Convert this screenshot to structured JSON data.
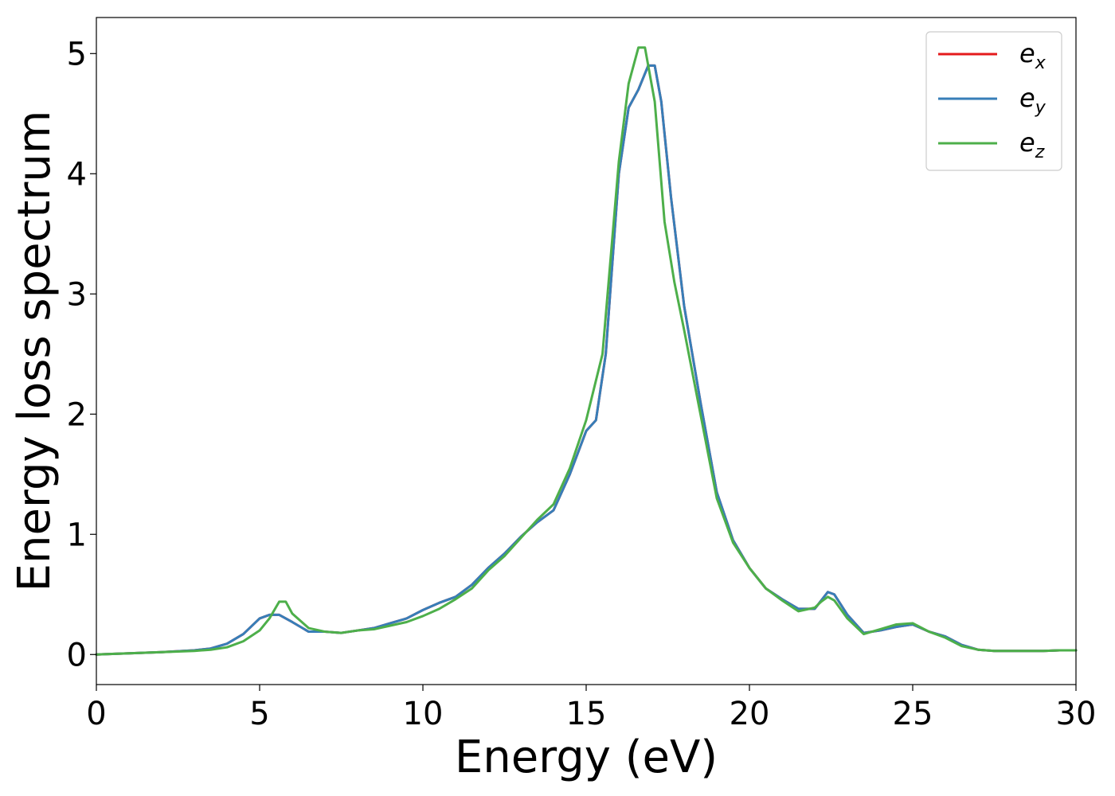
{
  "chart_data": {
    "type": "line",
    "title": "",
    "xlabel": "Energy (eV)",
    "ylabel": "Energy loss spectrum",
    "xlim": [
      0,
      30
    ],
    "ylim": [
      -0.25,
      5.3
    ],
    "xticks": [
      0,
      5,
      10,
      15,
      20,
      25,
      30
    ],
    "yticks": [
      0,
      1,
      2,
      3,
      4,
      5
    ],
    "grid": false,
    "legend_position": "top-right",
    "series": [
      {
        "name": "e_x",
        "legend_base": "e",
        "legend_sub": "x",
        "color": "#e41a1c",
        "x": [
          0,
          1,
          2,
          3,
          3.5,
          4,
          4.5,
          5,
          5.3,
          5.6,
          6,
          6.5,
          7,
          7.5,
          8,
          8.5,
          9,
          9.5,
          10,
          10.5,
          11,
          11.5,
          12,
          12.5,
          13,
          13.5,
          14,
          14.5,
          15,
          15.3,
          15.6,
          16,
          16.3,
          16.6,
          16.9,
          17.1,
          17.3,
          17.6,
          18,
          18.5,
          19,
          19.5,
          20,
          20.5,
          21,
          21.5,
          22,
          22.2,
          22.4,
          22.6,
          23,
          23.5,
          24,
          24.5,
          25,
          25.5,
          26,
          26.5,
          27,
          27.5,
          28,
          28.5,
          29,
          29.5,
          30
        ],
        "y": [
          0,
          0.01,
          0.02,
          0.035,
          0.05,
          0.09,
          0.17,
          0.3,
          0.33,
          0.33,
          0.27,
          0.19,
          0.19,
          0.18,
          0.2,
          0.22,
          0.26,
          0.3,
          0.37,
          0.43,
          0.48,
          0.58,
          0.72,
          0.84,
          0.98,
          1.1,
          1.2,
          1.5,
          1.86,
          1.95,
          2.5,
          4.0,
          4.55,
          4.7,
          4.9,
          4.9,
          4.6,
          3.8,
          2.9,
          2.1,
          1.35,
          0.95,
          0.72,
          0.55,
          0.46,
          0.38,
          0.38,
          0.45,
          0.52,
          0.5,
          0.33,
          0.18,
          0.2,
          0.23,
          0.25,
          0.19,
          0.15,
          0.08,
          0.04,
          0.03,
          0.03,
          0.03,
          0.03,
          0.035,
          0.035
        ]
      },
      {
        "name": "e_y",
        "legend_base": "e",
        "legend_sub": "y",
        "color": "#377eb8",
        "x": [
          0,
          1,
          2,
          3,
          3.5,
          4,
          4.5,
          5,
          5.3,
          5.6,
          6,
          6.5,
          7,
          7.5,
          8,
          8.5,
          9,
          9.5,
          10,
          10.5,
          11,
          11.5,
          12,
          12.5,
          13,
          13.5,
          14,
          14.5,
          15,
          15.3,
          15.6,
          16,
          16.3,
          16.6,
          16.9,
          17.1,
          17.3,
          17.6,
          18,
          18.5,
          19,
          19.5,
          20,
          20.5,
          21,
          21.5,
          22,
          22.2,
          22.4,
          22.6,
          23,
          23.5,
          24,
          24.5,
          25,
          25.5,
          26,
          26.5,
          27,
          27.5,
          28,
          28.5,
          29,
          29.5,
          30
        ],
        "y": [
          0,
          0.01,
          0.02,
          0.035,
          0.05,
          0.09,
          0.17,
          0.3,
          0.33,
          0.33,
          0.27,
          0.19,
          0.19,
          0.18,
          0.2,
          0.22,
          0.26,
          0.3,
          0.37,
          0.43,
          0.48,
          0.58,
          0.72,
          0.84,
          0.98,
          1.1,
          1.2,
          1.5,
          1.86,
          1.95,
          2.5,
          4.0,
          4.55,
          4.7,
          4.9,
          4.9,
          4.6,
          3.8,
          2.9,
          2.1,
          1.35,
          0.95,
          0.72,
          0.55,
          0.46,
          0.38,
          0.38,
          0.45,
          0.52,
          0.5,
          0.33,
          0.18,
          0.2,
          0.23,
          0.25,
          0.19,
          0.15,
          0.08,
          0.04,
          0.03,
          0.03,
          0.03,
          0.03,
          0.035,
          0.035
        ]
      },
      {
        "name": "e_z",
        "legend_base": "e",
        "legend_sub": "z",
        "color": "#4daf4a",
        "x": [
          0,
          1,
          2,
          3,
          3.5,
          4,
          4.5,
          5,
          5.3,
          5.6,
          5.8,
          6,
          6.5,
          7,
          7.5,
          8,
          8.5,
          9,
          9.5,
          10,
          10.5,
          11,
          11.5,
          12,
          12.5,
          13,
          13.5,
          14,
          14.5,
          15,
          15.5,
          16,
          16.3,
          16.6,
          16.8,
          17.1,
          17.4,
          17.7,
          18,
          18.5,
          19,
          19.5,
          20,
          20.5,
          21,
          21.5,
          22,
          22.2,
          22.4,
          22.6,
          23,
          23.5,
          24,
          24.5,
          25,
          25.5,
          26,
          26.5,
          27,
          27.5,
          28,
          28.5,
          29,
          29.5,
          30
        ],
        "y": [
          0,
          0.01,
          0.02,
          0.03,
          0.04,
          0.06,
          0.11,
          0.2,
          0.3,
          0.44,
          0.44,
          0.34,
          0.22,
          0.19,
          0.18,
          0.2,
          0.21,
          0.24,
          0.27,
          0.32,
          0.38,
          0.46,
          0.55,
          0.7,
          0.82,
          0.97,
          1.12,
          1.25,
          1.55,
          1.95,
          2.5,
          4.1,
          4.75,
          5.05,
          5.05,
          4.6,
          3.6,
          3.1,
          2.7,
          2.0,
          1.3,
          0.93,
          0.72,
          0.55,
          0.45,
          0.36,
          0.39,
          0.44,
          0.48,
          0.45,
          0.3,
          0.17,
          0.21,
          0.25,
          0.26,
          0.19,
          0.14,
          0.07,
          0.04,
          0.03,
          0.03,
          0.03,
          0.03,
          0.035,
          0.035
        ]
      }
    ]
  }
}
